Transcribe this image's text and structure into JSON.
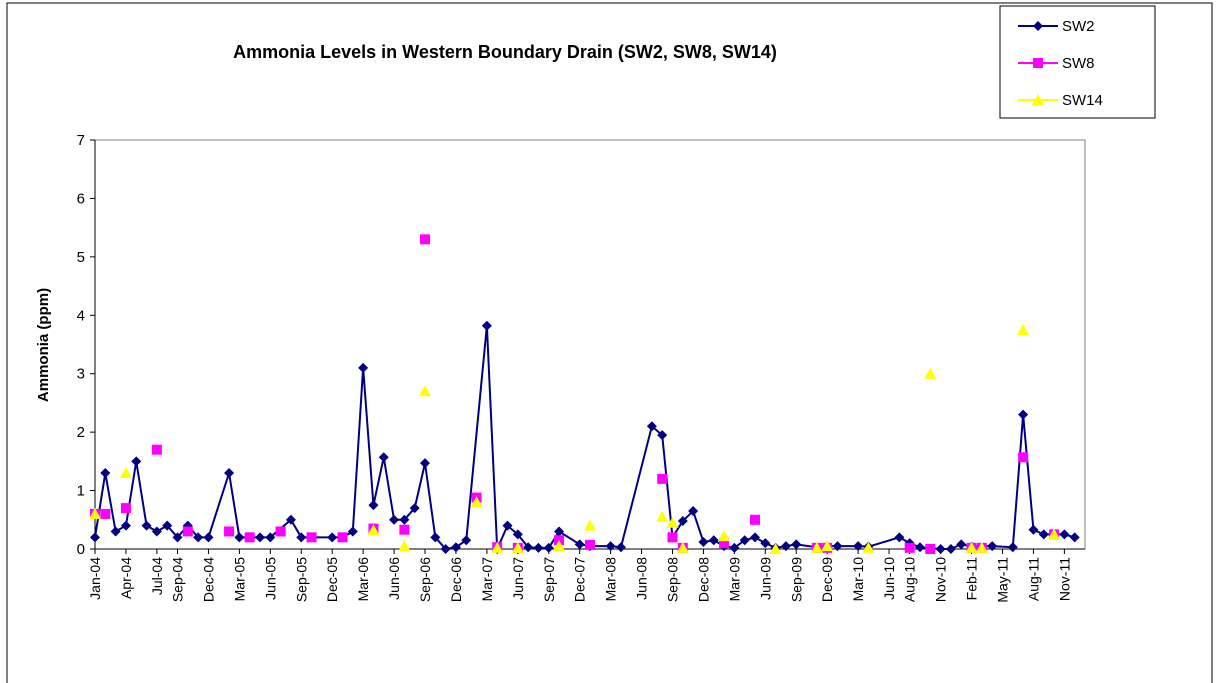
{
  "chart_data": {
    "type": "line",
    "title": "Ammonia Levels in Western Boundary Drain (SW2, SW8, SW14)",
    "y_label": "Ammonia (ppm)",
    "ylim": [
      0,
      7
    ],
    "yticks": [
      0,
      1,
      2,
      3,
      4,
      5,
      6,
      7
    ],
    "xlim": [
      "2004-01",
      "2012-01"
    ],
    "xticks": [
      {
        "value": "2004-01",
        "label": "Jan-04"
      },
      {
        "value": "2004-04",
        "label": "Apr-04"
      },
      {
        "value": "2004-07",
        "label": "Jul-04"
      },
      {
        "value": "2004-09",
        "label": "Sep-04"
      },
      {
        "value": "2004-12",
        "label": "Dec-04"
      },
      {
        "value": "2005-03",
        "label": "Mar-05"
      },
      {
        "value": "2005-06",
        "label": "Jun-05"
      },
      {
        "value": "2005-09",
        "label": "Sep-05"
      },
      {
        "value": "2005-12",
        "label": "Dec-05"
      },
      {
        "value": "2006-03",
        "label": "Mar-06"
      },
      {
        "value": "2006-06",
        "label": "Jun-06"
      },
      {
        "value": "2006-09",
        "label": "Sep-06"
      },
      {
        "value": "2006-12",
        "label": "Dec-06"
      },
      {
        "value": "2007-03",
        "label": "Mar-07"
      },
      {
        "value": "2007-06",
        "label": "Jun-07"
      },
      {
        "value": "2007-09",
        "label": "Sep-07"
      },
      {
        "value": "2007-12",
        "label": "Dec-07"
      },
      {
        "value": "2008-03",
        "label": "Mar-08"
      },
      {
        "value": "2008-06",
        "label": "Jun-08"
      },
      {
        "value": "2008-09",
        "label": "Sep-08"
      },
      {
        "value": "2008-12",
        "label": "Dec-08"
      },
      {
        "value": "2009-03",
        "label": "Mar-09"
      },
      {
        "value": "2009-06",
        "label": "Jun-09"
      },
      {
        "value": "2009-09",
        "label": "Sep-09"
      },
      {
        "value": "2009-12",
        "label": "Dec-09"
      },
      {
        "value": "2010-03",
        "label": "Mar-10"
      },
      {
        "value": "2010-06",
        "label": "Jun-10"
      },
      {
        "value": "2010-08",
        "label": "Aug-10"
      },
      {
        "value": "2010-11",
        "label": "Nov-10"
      },
      {
        "value": "2011-02",
        "label": "Feb-11"
      },
      {
        "value": "2011-05",
        "label": "May-11"
      },
      {
        "value": "2011-08",
        "label": "Aug-11"
      },
      {
        "value": "2011-11",
        "label": "Nov-11"
      }
    ],
    "legend": "top-right",
    "series": [
      {
        "name": "SW2",
        "color": "#000080",
        "marker": "diamond",
        "line": true,
        "x": [
          "2004-01",
          "2004-02",
          "2004-03",
          "2004-04",
          "2004-05",
          "2004-06",
          "2004-07",
          "2004-08",
          "2004-09",
          "2004-10",
          "2004-11",
          "2004-12",
          "2005-02",
          "2005-03",
          "2005-04",
          "2005-05",
          "2005-06",
          "2005-08",
          "2005-09",
          "2005-10",
          "2005-12",
          "2006-01",
          "2006-02",
          "2006-03",
          "2006-04",
          "2006-05",
          "2006-06",
          "2006-07",
          "2006-08",
          "2006-09",
          "2006-10",
          "2006-11",
          "2006-12",
          "2007-01",
          "2007-03",
          "2007-04",
          "2007-05",
          "2007-06",
          "2007-07",
          "2007-08",
          "2007-09",
          "2007-10",
          "2007-12",
          "2008-01",
          "2008-03",
          "2008-04",
          "2008-07",
          "2008-08",
          "2008-09",
          "2008-10",
          "2008-11",
          "2008-12",
          "2009-01",
          "2009-02",
          "2009-03",
          "2009-04",
          "2009-05",
          "2009-06",
          "2009-07",
          "2009-08",
          "2009-09",
          "2009-11",
          "2009-12",
          "2010-01",
          "2010-03",
          "2010-04",
          "2010-07",
          "2010-08",
          "2010-09",
          "2010-11",
          "2010-12",
          "2011-01",
          "2011-02",
          "2011-04",
          "2011-06",
          "2011-07",
          "2011-08",
          "2011-09",
          "2011-10",
          "2011-11",
          "2011-12"
        ],
        "values": [
          0.2,
          1.3,
          0.3,
          0.4,
          1.5,
          0.4,
          0.3,
          0.4,
          0.2,
          0.4,
          0.2,
          0.2,
          1.3,
          0.2,
          0.2,
          0.2,
          0.2,
          0.5,
          0.2,
          0.2,
          0.2,
          0.2,
          0.3,
          3.1,
          0.75,
          1.57,
          0.5,
          0.5,
          0.7,
          1.47,
          0.2,
          0,
          0.03,
          0.15,
          3.82,
          0,
          0.4,
          0.25,
          0.03,
          0.02,
          0.02,
          0.3,
          0.08,
          0.05,
          0.05,
          0.03,
          2.1,
          1.95,
          0.2,
          0.48,
          0.65,
          0.12,
          0.15,
          0.05,
          0.02,
          0.15,
          0.2,
          0.1,
          0.02,
          0.05,
          0.08,
          0.03,
          0.05,
          0.05,
          0.05,
          0.04,
          0.2,
          0.1,
          0.03,
          0,
          0,
          0.08,
          0.04,
          0.05,
          0.03,
          2.3,
          0.33,
          0.25,
          0.25,
          0.25,
          0.2
        ]
      },
      {
        "name": "SW8",
        "color": "#ff00ff",
        "marker": "square",
        "line": false,
        "x": [
          "2004-01",
          "2004-02",
          "2004-04",
          "2004-07",
          "2004-10",
          "2005-02",
          "2005-04",
          "2005-07",
          "2005-10",
          "2006-01",
          "2006-04",
          "2006-07",
          "2006-09",
          "2007-02",
          "2007-04",
          "2007-06",
          "2007-10",
          "2008-01",
          "2008-08",
          "2008-09",
          "2008-10",
          "2009-02",
          "2009-05",
          "2009-11",
          "2009-12",
          "2010-08",
          "2010-10",
          "2011-02",
          "2011-03",
          "2011-07",
          "2011-10"
        ],
        "values": [
          0.6,
          0.6,
          0.7,
          1.7,
          0.3,
          0.3,
          0.2,
          0.3,
          0.2,
          0.2,
          0.35,
          0.33,
          5.3,
          0.88,
          0.03,
          0.02,
          0.15,
          0.07,
          1.2,
          0.2,
          0.02,
          0.1,
          0.5,
          0.02,
          0.02,
          0.02,
          0,
          0.02,
          0.02,
          1.57,
          0.25
        ]
      },
      {
        "name": "SW14",
        "color": "#ffff00",
        "marker": "triangle",
        "line": false,
        "x": [
          "2004-01",
          "2004-04",
          "2006-04",
          "2006-07",
          "2006-09",
          "2007-02",
          "2007-04",
          "2007-06",
          "2007-10",
          "2008-01",
          "2008-08",
          "2008-09",
          "2008-10",
          "2009-02",
          "2009-07",
          "2009-11",
          "2009-12",
          "2010-04",
          "2010-10",
          "2011-02",
          "2011-03",
          "2011-07",
          "2011-10"
        ],
        "values": [
          0.6,
          1.3,
          0.32,
          0.05,
          2.7,
          0.8,
          0.02,
          0.02,
          0.05,
          0.4,
          0.55,
          0.45,
          0.02,
          0.22,
          0,
          0.02,
          0.05,
          0.02,
          3,
          0.02,
          0.02,
          3.75,
          0.25
        ]
      }
    ]
  }
}
